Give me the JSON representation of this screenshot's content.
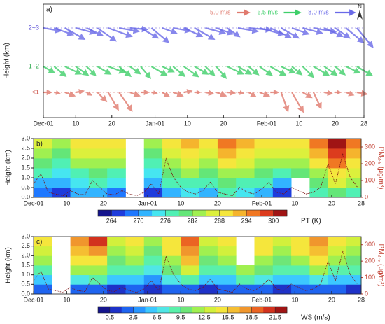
{
  "chart_data": [
    {
      "type": "quiver",
      "panel_label": "a)",
      "y_label": "Height (km)",
      "north": "N",
      "categories": [
        "2~3",
        "1~2",
        "<1"
      ],
      "category_colors": [
        "#5a4fd6",
        "#2aa84a",
        "#c8463c"
      ],
      "xlim": [
        0,
        89
      ],
      "xticks": [
        {
          "value": 0,
          "label": "Dec-01"
        },
        {
          "value": 9,
          "label": "10"
        },
        {
          "value": 19,
          "label": "20"
        },
        {
          "value": 31,
          "label": "Jan-01"
        },
        {
          "value": 40,
          "label": "10"
        },
        {
          "value": 50,
          "label": "20"
        },
        {
          "value": 62,
          "label": "Feb-01"
        },
        {
          "value": 71,
          "label": "10"
        },
        {
          "value": 81,
          "label": "20"
        },
        {
          "value": 89,
          "label": "28"
        }
      ],
      "legend": [
        {
          "speed": 5.0,
          "label": "5.0 m/s",
          "color": "#e07a6e"
        },
        {
          "speed": 6.5,
          "label": "6.5 m/s",
          "color": "#3fcf6a"
        },
        {
          "speed": 8.0,
          "label": "8.0 m/s",
          "color": "#6a6ae8"
        }
      ],
      "x": [
        0,
        3,
        6,
        9,
        12,
        15,
        18,
        21,
        24,
        27,
        30,
        33,
        36,
        39,
        42,
        45,
        48,
        51,
        54,
        57,
        60,
        63,
        66,
        69,
        72,
        75,
        78,
        81,
        84,
        87
      ],
      "series": [
        {
          "name": "2~3",
          "color": "#6a6ae8",
          "speed": [
            7,
            8,
            9,
            8,
            7,
            9,
            10,
            8,
            7,
            8,
            9,
            6,
            7,
            8,
            9,
            8,
            7,
            6,
            8,
            9,
            10,
            9,
            8,
            7,
            8,
            9,
            8,
            7,
            9,
            10
          ],
          "direction": [
            100,
            110,
            120,
            105,
            115,
            125,
            110,
            100,
            95,
            120,
            130,
            110,
            100,
            115,
            120,
            105,
            110,
            125,
            100,
            95,
            105,
            115,
            120,
            110,
            105,
            100,
            115,
            125,
            130,
            140
          ]
        },
        {
          "name": "1~2",
          "color": "#3fcf6a",
          "speed": [
            5,
            6,
            7,
            6,
            5,
            6,
            7,
            6,
            5,
            6,
            7,
            5,
            6,
            7,
            6,
            5,
            6,
            7,
            6,
            5,
            6,
            7,
            6,
            5,
            6,
            7,
            6,
            5,
            6,
            7
          ],
          "direction": [
            120,
            130,
            115,
            125,
            135,
            120,
            110,
            130,
            125,
            140,
            120,
            115,
            130,
            125,
            120,
            135,
            140,
            115,
            120,
            130,
            125,
            120,
            115,
            130,
            135,
            120,
            125,
            130,
            115,
            120
          ]
        },
        {
          "name": "<1",
          "color": "#e07a6e",
          "speed": [
            3,
            2,
            4,
            3,
            2,
            5,
            8,
            9,
            4,
            3,
            2,
            3,
            4,
            3,
            2,
            3,
            4,
            3,
            2,
            3,
            4,
            3,
            8,
            9,
            4,
            7,
            3,
            2,
            3,
            4
          ],
          "direction": [
            90,
            100,
            110,
            80,
            120,
            135,
            150,
            145,
            110,
            90,
            100,
            120,
            110,
            80,
            90,
            100,
            110,
            95,
            100,
            120,
            110,
            90,
            160,
            150,
            120,
            155,
            100,
            90,
            110,
            100
          ]
        }
      ]
    },
    {
      "type": "contour",
      "panel_label": "b)",
      "y_label": "Height (km)",
      "y2_label": "PM₂.₅ (μg/m³)",
      "colorbar_label": "PT (K)",
      "xlim": [
        0,
        89
      ],
      "xticks": [
        {
          "value": 0,
          "label": "Dec-01"
        },
        {
          "value": 9,
          "label": "10"
        },
        {
          "value": 19,
          "label": "20"
        },
        {
          "value": 31,
          "label": "Jan-01"
        },
        {
          "value": 40,
          "label": "10"
        },
        {
          "value": 50,
          "label": "20"
        },
        {
          "value": 62,
          "label": "Feb-01"
        },
        {
          "value": 71,
          "label": "10"
        },
        {
          "value": 81,
          "label": "20"
        },
        {
          "value": 89,
          "label": "28"
        }
      ],
      "ylim": [
        0,
        3
      ],
      "yticks": [
        {
          "value": 0,
          "label": "0.0"
        },
        {
          "value": 0.5,
          "label": "0.5"
        },
        {
          "value": 1,
          "label": "1.0"
        },
        {
          "value": 1.5,
          "label": "1.5"
        },
        {
          "value": 2,
          "label": "2.0"
        },
        {
          "value": 2.5,
          "label": "2.5"
        },
        {
          "value": 3,
          "label": "3.0"
        }
      ],
      "y2lim": [
        0,
        350
      ],
      "y2ticks": [
        0,
        100,
        200,
        300
      ],
      "zlim": [
        261,
        303
      ],
      "zticks": [
        264,
        270,
        276,
        282,
        288,
        294,
        300
      ],
      "colors": [
        "#14148c",
        "#1e3cdc",
        "#1e78ff",
        "#32b4ff",
        "#46e6f0",
        "#50f0b4",
        "#64e678",
        "#a0f050",
        "#dcf03c",
        "#f5e63c",
        "#f5b42d",
        "#f07823",
        "#dc3c1e",
        "#a01414"
      ],
      "grid_x": [
        2.5,
        7.5,
        12.5,
        17.5,
        22.5,
        27.5,
        32.5,
        37.5,
        42.5,
        47.5,
        52.5,
        57.5,
        62.5,
        67.5,
        72.5,
        77.5,
        82.5,
        87.5
      ],
      "grid_y": [
        0.25,
        0.75,
        1.25,
        1.75,
        2.25,
        2.75
      ],
      "z": [
        [
          268,
          266,
          270,
          272,
          268,
          null,
          264,
          270,
          274,
          272,
          276,
          274,
          270,
          266,
          null,
          276,
          280,
          278
        ],
        [
          272,
          270,
          274,
          276,
          274,
          null,
          270,
          276,
          278,
          276,
          280,
          278,
          276,
          272,
          null,
          280,
          286,
          282
        ],
        [
          276,
          274,
          278,
          280,
          278,
          null,
          274,
          280,
          282,
          280,
          284,
          282,
          280,
          278,
          280,
          284,
          290,
          286
        ],
        [
          280,
          278,
          282,
          284,
          282,
          null,
          278,
          284,
          286,
          284,
          288,
          286,
          284,
          282,
          284,
          288,
          294,
          290
        ],
        [
          283,
          281,
          285,
          287,
          285,
          null,
          281,
          287,
          289,
          287,
          291,
          289,
          287,
          285,
          287,
          291,
          298,
          293
        ],
        [
          286,
          284,
          288,
          290,
          288,
          null,
          284,
          290,
          292,
          290,
          294,
          292,
          290,
          288,
          290,
          294,
          300,
          296
        ]
      ],
      "pm_x": [
        0,
        2,
        4,
        6,
        8,
        10,
        12,
        14,
        16,
        18,
        20,
        22,
        24,
        26,
        28,
        30,
        32,
        34,
        36,
        38,
        40,
        42,
        44,
        46,
        48,
        50,
        52,
        54,
        56,
        58,
        60,
        62,
        64,
        66,
        68,
        70,
        72,
        74,
        76,
        78,
        80,
        82,
        84,
        86,
        88
      ],
      "pm": [
        80,
        140,
        30,
        20,
        10,
        40,
        20,
        15,
        100,
        60,
        20,
        15,
        40,
        20,
        10,
        30,
        80,
        20,
        230,
        120,
        60,
        30,
        20,
        40,
        90,
        30,
        20,
        10,
        60,
        30,
        20,
        50,
        90,
        30,
        20,
        60,
        40,
        20,
        30,
        60,
        200,
        80,
        260,
        120,
        60
      ]
    },
    {
      "type": "contour",
      "panel_label": "c)",
      "y_label": "Height (km)",
      "y2_label": "PM₂.₅ (μg/m³)",
      "colorbar_label": "WS (m/s)",
      "xlim": [
        0,
        89
      ],
      "xticks": [
        {
          "value": 0,
          "label": "Dec-01"
        },
        {
          "value": 9,
          "label": "10"
        },
        {
          "value": 19,
          "label": "20"
        },
        {
          "value": 31,
          "label": "Jan-01"
        },
        {
          "value": 40,
          "label": "10"
        },
        {
          "value": 50,
          "label": "20"
        },
        {
          "value": 62,
          "label": "Feb-01"
        },
        {
          "value": 71,
          "label": "10"
        },
        {
          "value": 81,
          "label": "20"
        },
        {
          "value": 89,
          "label": "28"
        }
      ],
      "ylim": [
        0,
        3
      ],
      "yticks": [
        {
          "value": 0,
          "label": "0.0"
        },
        {
          "value": 0.5,
          "label": "0.5"
        },
        {
          "value": 1,
          "label": "1.0"
        },
        {
          "value": 1.5,
          "label": "1.5"
        },
        {
          "value": 2,
          "label": "2.0"
        },
        {
          "value": 2.5,
          "label": "2.5"
        },
        {
          "value": 3,
          "label": "3.0"
        }
      ],
      "y2lim": [
        0,
        350
      ],
      "y2ticks": [
        0,
        100,
        200,
        300
      ],
      "zlim": [
        -1,
        23
      ],
      "zticks": [
        0.5,
        3.5,
        6.5,
        9.5,
        12.5,
        15.5,
        18.5,
        21.5
      ],
      "colors": [
        "#14148c",
        "#1e32c8",
        "#1e64f0",
        "#2896ff",
        "#3cc8ff",
        "#50e6e6",
        "#5af0aa",
        "#6ee678",
        "#a0f050",
        "#d2f03c",
        "#f5e63c",
        "#f5be32",
        "#f0962d",
        "#eb6423",
        "#d2321e",
        "#a01414"
      ],
      "grid_x": [
        2.5,
        7.5,
        12.5,
        17.5,
        22.5,
        27.5,
        32.5,
        37.5,
        42.5,
        47.5,
        52.5,
        57.5,
        62.5,
        67.5,
        72.5,
        77.5,
        82.5,
        87.5
      ],
      "grid_y": [
        0.25,
        0.75,
        1.25,
        1.75,
        2.25,
        2.75
      ],
      "z": [
        [
          2,
          null,
          3,
          2,
          1,
          2,
          1,
          3,
          2,
          1,
          2,
          3,
          2,
          1,
          2,
          3,
          2,
          1
        ],
        [
          6,
          null,
          7,
          8,
          5,
          6,
          4,
          7,
          9,
          5,
          6,
          8,
          7,
          5,
          6,
          7,
          6,
          5
        ],
        [
          9,
          null,
          11,
          12,
          8,
          9,
          7,
          10,
          13,
          8,
          9,
          12,
          10,
          8,
          9,
          11,
          9,
          8
        ],
        [
          11,
          null,
          14,
          15,
          10,
          11,
          9,
          12,
          16,
          10,
          11,
          null,
          12,
          10,
          12,
          14,
          11,
          10
        ],
        [
          13,
          null,
          16,
          18,
          12,
          13,
          10,
          14,
          18,
          12,
          13,
          null,
          14,
          12,
          14,
          16,
          13,
          12
        ],
        [
          14,
          null,
          18,
          20,
          13,
          14,
          11,
          15,
          19,
          13,
          14,
          null,
          15,
          13,
          15,
          18,
          14,
          13
        ]
      ],
      "pm_x": [
        0,
        2,
        4,
        6,
        8,
        10,
        12,
        14,
        16,
        18,
        20,
        22,
        24,
        26,
        28,
        30,
        32,
        34,
        36,
        38,
        40,
        42,
        44,
        46,
        48,
        50,
        52,
        54,
        56,
        58,
        60,
        62,
        64,
        66,
        68,
        70,
        72,
        74,
        76,
        78,
        80,
        82,
        84,
        86,
        88
      ],
      "pm": [
        80,
        140,
        30,
        20,
        10,
        40,
        20,
        15,
        100,
        60,
        20,
        15,
        40,
        20,
        10,
        30,
        80,
        20,
        230,
        120,
        60,
        30,
        20,
        40,
        90,
        30,
        20,
        10,
        60,
        30,
        20,
        50,
        90,
        30,
        20,
        60,
        40,
        20,
        30,
        60,
        200,
        80,
        260,
        120,
        60
      ]
    }
  ]
}
